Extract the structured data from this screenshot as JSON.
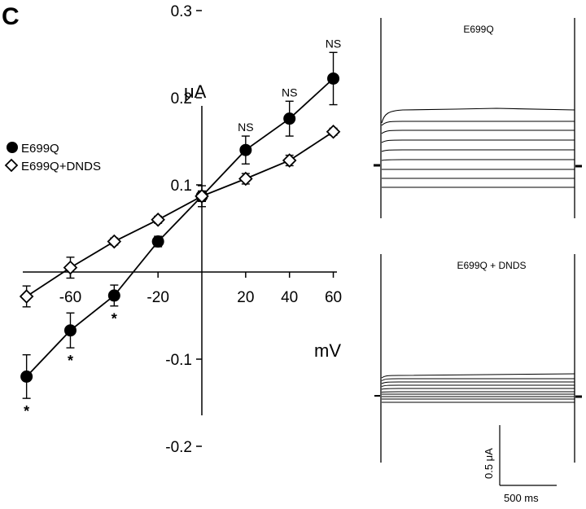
{
  "panel_label": "C",
  "chart_data": [
    {
      "type": "line",
      "xlabel": "mV",
      "ylabel": "μA",
      "xlim": [
        -80,
        60
      ],
      "ylim": [
        -0.2,
        0.3
      ],
      "x_ticks": [
        -60,
        -20,
        20,
        40,
        60
      ],
      "x_tick_labels": [
        "-60",
        "-20",
        "20",
        "40",
        "60"
      ],
      "y_ticks": [
        0.3,
        0.2,
        0.1,
        -0.1,
        -0.2
      ],
      "y_tick_labels": [
        "0.3",
        "0.2",
        "0.1",
        "-0.1",
        "-0.2"
      ],
      "grid": false,
      "legend_position": "left",
      "series": [
        {
          "name": "E699Q",
          "marker": "filled-circle",
          "x": [
            -80,
            -60,
            -40,
            -20,
            0,
            20,
            40,
            60
          ],
          "y": [
            -0.12,
            -0.067,
            -0.027,
            0.035,
            0.087,
            0.14,
            0.176,
            0.222
          ],
          "err": [
            0.025,
            0.02,
            0.012,
            0.006,
            0.012,
            0.016,
            0.02,
            0.03
          ],
          "annotations": [
            "*",
            "*",
            "*",
            "",
            "",
            "NS",
            "NS",
            "NS"
          ]
        },
        {
          "name": "E699Q+DNDS",
          "marker": "open-diamond",
          "x": [
            -80,
            -60,
            -40,
            -20,
            0,
            20,
            40,
            60
          ],
          "y": [
            -0.028,
            0.005,
            0.035,
            0.06,
            0.087,
            0.107,
            0.128,
            0.161
          ],
          "err": [
            0.012,
            0.012,
            0.004,
            0.004,
            0.006,
            0.006,
            0.006,
            0.004
          ]
        }
      ]
    }
  ],
  "traces": {
    "top_title": "E699Q",
    "bottom_title": "E699Q + DNDS",
    "scale_current_label": "0.5 μA",
    "scale_time_label": "500 ms"
  }
}
